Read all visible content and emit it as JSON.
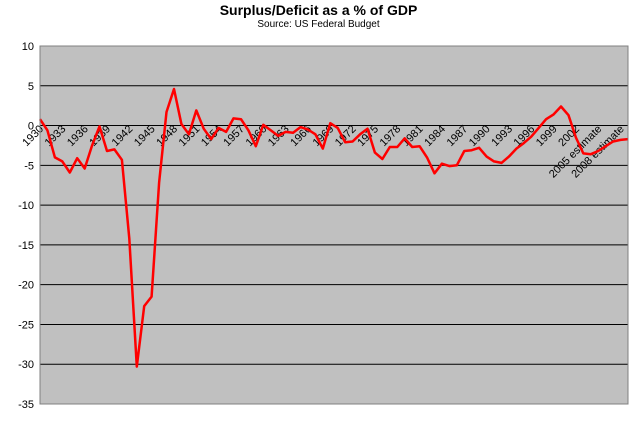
{
  "chart_data": {
    "type": "line",
    "title": "Surplus/Deficit as a % of GDP",
    "subtitle": "Source: US Federal Budget",
    "xlabel": "",
    "ylabel": "",
    "ylim": [
      -35,
      10
    ],
    "yticks": [
      10,
      5,
      0,
      -5,
      -10,
      -15,
      -20,
      -25,
      -30,
      -35
    ],
    "grid": "horizontal",
    "legend": "none",
    "colors": {
      "plot_bg": "#c0c0c0",
      "line": "#ff0000",
      "grid": "#000000"
    },
    "x_tick_labels": [
      "1930",
      "1933",
      "1936",
      "1939",
      "1942",
      "1945",
      "1948",
      "1951",
      "1954",
      "1957",
      "1960",
      "1963",
      "1966",
      "1969",
      "1972",
      "1975",
      "1978",
      "1981",
      "1984",
      "1987",
      "1990",
      "1993",
      "1996",
      "1999",
      "2002",
      "2005 estimate",
      "2008 estimate"
    ],
    "series": [
      {
        "name": "",
        "x": [
          1930,
          1931,
          1932,
          1933,
          1934,
          1935,
          1936,
          1937,
          1938,
          1939,
          1940,
          1941,
          1942,
          1943,
          1944,
          1945,
          1946,
          1947,
          1948,
          1949,
          1950,
          1951,
          1952,
          1953,
          1954,
          1955,
          1956,
          1957,
          1958,
          1959,
          1960,
          1961,
          1962,
          1963,
          1964,
          1965,
          1966,
          1967,
          1968,
          1969,
          1970,
          1971,
          1972,
          1973,
          1974,
          1975,
          1976,
          1977,
          1978,
          1979,
          1980,
          1981,
          1982,
          1983,
          1984,
          1985,
          1986,
          1987,
          1988,
          1989,
          1990,
          1991,
          1992,
          1993,
          1994,
          1995,
          1996,
          1997,
          1998,
          1999,
          2000,
          2001,
          2002,
          2003,
          2004,
          2005,
          2006,
          2007,
          2008,
          2009
        ],
        "values": [
          0.8,
          -0.6,
          -4.0,
          -4.5,
          -5.9,
          -4.1,
          -5.4,
          -2.5,
          -0.1,
          -3.2,
          -3.0,
          -4.3,
          -14.2,
          -30.3,
          -22.7,
          -21.5,
          -7.2,
          1.7,
          4.6,
          0.2,
          -1.1,
          1.9,
          -0.4,
          -1.7,
          -0.3,
          -0.8,
          0.9,
          0.8,
          -0.6,
          -2.6,
          0.1,
          -0.6,
          -1.3,
          -0.8,
          -0.9,
          -0.2,
          -0.5,
          -1.1,
          -2.9,
          0.3,
          -0.3,
          -2.1,
          -2.0,
          -1.1,
          -0.4,
          -3.4,
          -4.2,
          -2.7,
          -2.7,
          -1.6,
          -2.7,
          -2.6,
          -4.0,
          -6.0,
          -4.8,
          -5.1,
          -5.0,
          -3.2,
          -3.1,
          -2.8,
          -3.9,
          -4.5,
          -4.7,
          -3.9,
          -2.9,
          -2.2,
          -1.4,
          -0.3,
          0.8,
          1.4,
          2.4,
          1.3,
          -1.5,
          -3.5,
          -3.6,
          -3.2,
          -2.6,
          -2.0,
          -1.8,
          -1.7
        ]
      }
    ]
  }
}
